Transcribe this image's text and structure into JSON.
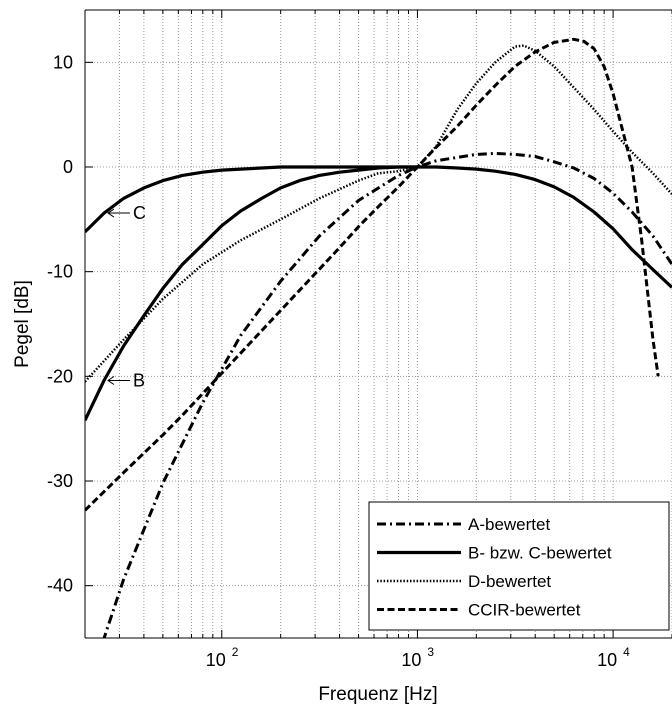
{
  "chart_data": {
    "type": "line",
    "xlabel": "Frequenz [Hz]",
    "ylabel": "Pegel [dB]",
    "x_scale": "log",
    "xlim": [
      20,
      20000
    ],
    "ylim": [
      -45,
      15
    ],
    "grid": true,
    "legend_position": "bottom-right",
    "x_ticks": [
      {
        "value": 100,
        "base": "10",
        "exp": "2"
      },
      {
        "value": 1000,
        "base": "10",
        "exp": "3"
      },
      {
        "value": 10000,
        "base": "10",
        "exp": "4"
      }
    ],
    "y_ticks": [
      10,
      0,
      -10,
      -20,
      -30,
      -40
    ],
    "series": [
      {
        "name": "A-bewertet",
        "style": "dashdot",
        "width": 3,
        "points": [
          [
            20,
            -50.5
          ],
          [
            31.5,
            -39.4
          ],
          [
            50,
            -30.2
          ],
          [
            80,
            -22.5
          ],
          [
            125,
            -16.1
          ],
          [
            200,
            -10.9
          ],
          [
            315,
            -6.6
          ],
          [
            500,
            -3.2
          ],
          [
            800,
            -0.8
          ],
          [
            1000,
            0
          ],
          [
            1250,
            0.6
          ],
          [
            2000,
            1.2
          ],
          [
            2500,
            1.3
          ],
          [
            3150,
            1.2
          ],
          [
            4000,
            1.0
          ],
          [
            5000,
            0.5
          ],
          [
            6300,
            -0.1
          ],
          [
            8000,
            -1.1
          ],
          [
            10000,
            -2.5
          ],
          [
            12500,
            -4.3
          ],
          [
            16000,
            -6.6
          ],
          [
            20000,
            -9.3
          ]
        ]
      },
      {
        "name": "B- bzw. C-bewertet",
        "style": "solid",
        "width": 3.2,
        "points": [
          [
            20,
            -24.2
          ],
          [
            25,
            -20.4
          ],
          [
            31.5,
            -17.1
          ],
          [
            40,
            -14.2
          ],
          [
            50,
            -11.6
          ],
          [
            63,
            -9.3
          ],
          [
            80,
            -7.4
          ],
          [
            100,
            -5.6
          ],
          [
            125,
            -4.2
          ],
          [
            160,
            -3.0
          ],
          [
            200,
            -2.0
          ],
          [
            250,
            -1.3
          ],
          [
            315,
            -0.8
          ],
          [
            400,
            -0.5
          ],
          [
            500,
            -0.3
          ],
          [
            630,
            -0.1
          ],
          [
            800,
            0
          ],
          [
            1000,
            0
          ],
          [
            1250,
            0
          ],
          [
            1600,
            -0.1
          ],
          [
            2000,
            -0.2
          ],
          [
            2500,
            -0.4
          ],
          [
            3150,
            -0.7
          ],
          [
            4000,
            -1.2
          ],
          [
            5000,
            -1.9
          ],
          [
            6300,
            -2.9
          ],
          [
            8000,
            -4.3
          ],
          [
            10000,
            -5.9
          ],
          [
            12500,
            -7.9
          ],
          [
            16000,
            -9.8
          ],
          [
            20000,
            -11.5
          ]
        ]
      },
      {
        "name": "",
        "style": "solid",
        "width": 3.2,
        "points": [
          [
            20,
            -6.2
          ],
          [
            25,
            -4.4
          ],
          [
            31.5,
            -3.0
          ],
          [
            40,
            -2.0
          ],
          [
            50,
            -1.3
          ],
          [
            63,
            -0.8
          ],
          [
            80,
            -0.5
          ],
          [
            100,
            -0.3
          ],
          [
            125,
            -0.2
          ],
          [
            160,
            -0.1
          ],
          [
            200,
            0
          ],
          [
            400,
            0
          ],
          [
            630,
            0
          ],
          [
            1000,
            0
          ]
        ]
      },
      {
        "name": "D-bewertet",
        "style": "dotted",
        "width": 2.5,
        "points": [
          [
            20,
            -20.5
          ],
          [
            31.5,
            -16.5
          ],
          [
            50,
            -12.6
          ],
          [
            80,
            -9.3
          ],
          [
            125,
            -7.0
          ],
          [
            200,
            -5.0
          ],
          [
            315,
            -3.0
          ],
          [
            500,
            -1.3
          ],
          [
            630,
            -0.6
          ],
          [
            800,
            -0.4
          ],
          [
            1000,
            0
          ],
          [
            1250,
            2.0
          ],
          [
            1600,
            5.5
          ],
          [
            2000,
            8.0
          ],
          [
            2500,
            10.0
          ],
          [
            3150,
            11.5
          ],
          [
            3500,
            11.6
          ],
          [
            4000,
            11.1
          ],
          [
            5000,
            9.6
          ],
          [
            6300,
            7.6
          ],
          [
            8000,
            5.5
          ],
          [
            10000,
            3.4
          ],
          [
            12500,
            1.4
          ],
          [
            16000,
            -0.6
          ],
          [
            20000,
            -2.6
          ]
        ]
      },
      {
        "name": "CCIR-bewertet",
        "style": "dashed",
        "width": 3,
        "points": [
          [
            20,
            -32.8
          ],
          [
            31.5,
            -29.2
          ],
          [
            50,
            -25.6
          ],
          [
            63,
            -23.7
          ],
          [
            100,
            -19.7
          ],
          [
            200,
            -13.7
          ],
          [
            400,
            -7.7
          ],
          [
            500,
            -5.7
          ],
          [
            630,
            -3.8
          ],
          [
            800,
            -1.9
          ],
          [
            1000,
            0
          ],
          [
            1250,
            1.9
          ],
          [
            1600,
            3.9
          ],
          [
            2000,
            5.9
          ],
          [
            2500,
            7.8
          ],
          [
            3150,
            9.6
          ],
          [
            4000,
            11.0
          ],
          [
            5000,
            11.9
          ],
          [
            6300,
            12.2
          ],
          [
            7100,
            12.0
          ],
          [
            8000,
            11.3
          ],
          [
            9000,
            9.6
          ],
          [
            10000,
            7.0
          ],
          [
            12500,
            0
          ],
          [
            14000,
            -7.0
          ],
          [
            16000,
            -16.5
          ],
          [
            17000,
            -20.0
          ]
        ]
      }
    ],
    "annotations": [
      {
        "text": "C",
        "x": 25,
        "y": -4.4
      },
      {
        "text": "B",
        "x": 25,
        "y": -20.4
      }
    ]
  }
}
